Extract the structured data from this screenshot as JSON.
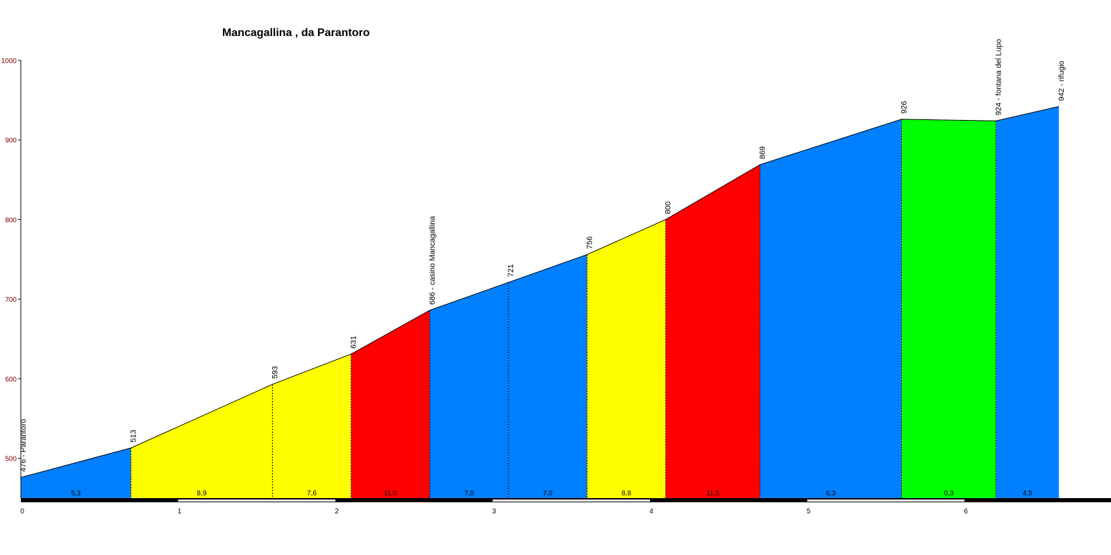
{
  "chart_data": {
    "type": "area",
    "title": "Mancagallina , da Parantoro",
    "xlabel": "",
    "ylabel": "",
    "xlim": [
      0,
      7
    ],
    "ylim": [
      450,
      1000
    ],
    "y_ticks": [
      500,
      600,
      700,
      800,
      900,
      1000
    ],
    "x_ticks": [
      0,
      1,
      2,
      3,
      4,
      5,
      6
    ],
    "grid": false,
    "points": [
      {
        "x": 0.0,
        "y": 476,
        "label": "476 - Parantoro"
      },
      {
        "x": 0.7,
        "y": 513,
        "label": "513"
      },
      {
        "x": 1.6,
        "y": 593,
        "label": "593"
      },
      {
        "x": 2.1,
        "y": 631,
        "label": "631"
      },
      {
        "x": 2.6,
        "y": 686,
        "label": "686 - casino Mancagallina"
      },
      {
        "x": 3.1,
        "y": 721,
        "label": "721"
      },
      {
        "x": 3.6,
        "y": 756,
        "label": "756"
      },
      {
        "x": 4.1,
        "y": 800,
        "label": "800"
      },
      {
        "x": 4.7,
        "y": 869,
        "label": "869"
      },
      {
        "x": 5.6,
        "y": 926,
        "label": "926"
      },
      {
        "x": 6.2,
        "y": 924,
        "label": "924 - fontana del Lupo"
      },
      {
        "x": 6.6,
        "y": 942,
        "label": "942 - rifugio"
      }
    ],
    "segments": [
      {
        "gradient": "5,3",
        "color": "#0080ff"
      },
      {
        "gradient": "8,9",
        "color": "#ffff00"
      },
      {
        "gradient": "7,6",
        "color": "#ffff00"
      },
      {
        "gradient": "11,0",
        "color": "#ff0000"
      },
      {
        "gradient": "7,0",
        "color": "#0080ff"
      },
      {
        "gradient": "7,0",
        "color": "#0080ff"
      },
      {
        "gradient": "8,8",
        "color": "#ffff00"
      },
      {
        "gradient": "11,5",
        "color": "#ff0000"
      },
      {
        "gradient": "6,3",
        "color": "#0080ff"
      },
      {
        "gradient": "0,3",
        "color": "#00ff00"
      },
      {
        "gradient": "4,5",
        "color": "#0080ff"
      }
    ],
    "colors": {
      "blue": "#0080ff",
      "yellow": "#ffff00",
      "red": "#ff0000",
      "green": "#00ff00",
      "ytick_label": "#800000"
    }
  }
}
